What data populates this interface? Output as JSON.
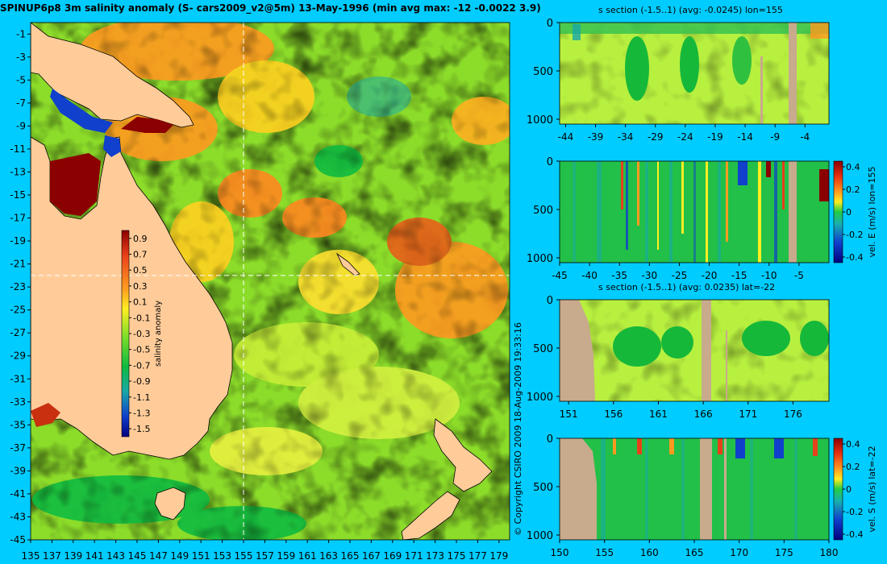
{
  "title": "SPINUP6p8 3m salinity anomaly (S- cars2009_v2@5m) 13-May-1996 (min avg max: -12 -0.0022 3.9)",
  "copyright": "© Copyright CSIRO 2009   18-Aug-2009 19:33:16",
  "colors": {
    "background": "#00ccff",
    "land": "#ffcc99",
    "section_land": "#c8aa8c"
  },
  "chart_data": [
    {
      "type": "heatmap",
      "id": "salinity-map",
      "xticks": [
        "135",
        "137",
        "139",
        "141",
        "143",
        "145",
        "147",
        "149",
        "151",
        "153",
        "155",
        "157",
        "159",
        "161",
        "163",
        "165",
        "167",
        "169",
        "171",
        "173",
        "175",
        "177",
        "179"
      ],
      "yticks": [
        "-1",
        "-3",
        "-5",
        "-7",
        "-9",
        "-11",
        "-13",
        "-15",
        "-17",
        "-19",
        "-21",
        "-23",
        "-25",
        "-27",
        "-29",
        "-31",
        "-33",
        "-35",
        "-37",
        "-39",
        "-41",
        "-43",
        "-45"
      ],
      "xlim": [
        135,
        180
      ],
      "ylim": [
        -45,
        0
      ],
      "crosshair": {
        "lon": 155,
        "lat": -22
      },
      "colorbar": {
        "label": "salinity anomaly",
        "ticks": [
          "0.9",
          "0.7",
          "0.5",
          "0.3",
          "0.1",
          "-0.1",
          "-0.3",
          "-0.5",
          "-0.7",
          "-0.9",
          "-1.1",
          "-1.3",
          "-1.5"
        ],
        "range": [
          -1.6,
          1.0
        ]
      }
    },
    {
      "type": "heatmap",
      "id": "s-section-lon",
      "title": "s section (-1.5..1) (avg: -0.0245) lon=155",
      "xticks": [
        "-44",
        "-39",
        "-34",
        "-29",
        "-24",
        "-19",
        "-14",
        "-9",
        "-4"
      ],
      "xlim": [
        -45,
        0
      ],
      "yticks": [
        "0",
        "500",
        "1000"
      ],
      "ylim": [
        0,
        1050
      ]
    },
    {
      "type": "heatmap",
      "id": "vel-e-section",
      "xticks": [
        "-45",
        "-40",
        "-35",
        "-30",
        "-25",
        "-20",
        "-15",
        "-10",
        "-5"
      ],
      "xlim": [
        -45,
        0
      ],
      "yticks": [
        "0",
        "500",
        "1000"
      ],
      "ylim": [
        0,
        1050
      ],
      "colorbar": {
        "label": "vel. E (m/s) lon=155",
        "ticks": [
          "0.4",
          "0.2",
          "0",
          "-0.2",
          "-0.4"
        ],
        "range": [
          -0.45,
          0.45
        ]
      }
    },
    {
      "type": "heatmap",
      "id": "s-section-lat",
      "title": "s section (-1.5..1) (avg: 0.0235) lat=-22",
      "xticks": [
        "151",
        "156",
        "161",
        "166",
        "171",
        "176"
      ],
      "xlim": [
        150,
        180
      ],
      "yticks": [
        "0",
        "500",
        "1000"
      ],
      "ylim": [
        0,
        1050
      ]
    },
    {
      "type": "heatmap",
      "id": "vel-s-section",
      "xticks": [
        "150",
        "155",
        "160",
        "165",
        "170",
        "175",
        "180"
      ],
      "xlim": [
        150,
        180
      ],
      "yticks": [
        "0",
        "500",
        "1000"
      ],
      "ylim": [
        0,
        1050
      ],
      "colorbar": {
        "label": "vel. S (m/s) lat=-22",
        "ticks": [
          "0.4",
          "0.2",
          "0",
          "-0.2",
          "-0.4"
        ],
        "range": [
          -0.45,
          0.45
        ]
      }
    }
  ]
}
